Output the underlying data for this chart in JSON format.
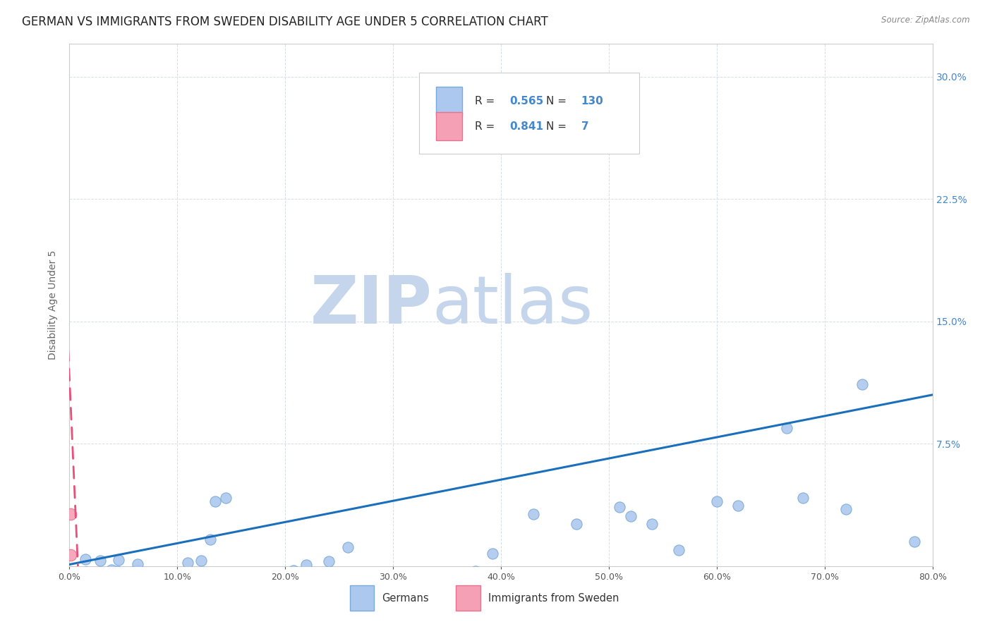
{
  "title": "GERMAN VS IMMIGRANTS FROM SWEDEN DISABILITY AGE UNDER 5 CORRELATION CHART",
  "source": "Source: ZipAtlas.com",
  "ylabel": "Disability Age Under 5",
  "xlim": [
    0.0,
    0.8
  ],
  "ylim": [
    0.0,
    0.32
  ],
  "xtick_vals": [
    0.0,
    0.1,
    0.2,
    0.3,
    0.4,
    0.5,
    0.6,
    0.7,
    0.8
  ],
  "xtick_labels": [
    "0.0%",
    "10.0%",
    "20.0%",
    "30.0%",
    "40.0%",
    "50.0%",
    "60.0%",
    "70.0%",
    "80.0%"
  ],
  "ytick_vals": [
    0.0,
    0.075,
    0.15,
    0.225,
    0.3
  ],
  "ytick_labels": [
    "",
    "7.5%",
    "15.0%",
    "22.5%",
    "30.0%"
  ],
  "german_color": "#adc8ee",
  "sweden_color": "#f5a0b5",
  "german_edge_color": "#7aaad8",
  "sweden_edge_color": "#e87090",
  "german_line_color": "#1a6fbd",
  "sweden_line_color": "#e8507a",
  "legend_R_german": "0.565",
  "legend_N_german": "130",
  "legend_R_sweden": "0.841",
  "legend_N_sweden": "7",
  "watermark_zip": "ZIP",
  "watermark_atlas": "atlas",
  "watermark_color_zip": "#c5d5eb",
  "watermark_color_atlas": "#c5d5eb",
  "background_color": "#ffffff",
  "grid_color": "#d5dde8",
  "title_fontsize": 12,
  "axis_label_fontsize": 10,
  "tick_fontsize": 9,
  "tick_color": "#555555",
  "right_tick_color": "#4488cc",
  "german_trend_x": [
    0.0,
    0.8
  ],
  "german_trend_y": [
    0.001,
    0.105
  ],
  "sweden_trend_x": [
    -0.002,
    0.008
  ],
  "sweden_trend_y": [
    0.145,
    -0.002
  ]
}
